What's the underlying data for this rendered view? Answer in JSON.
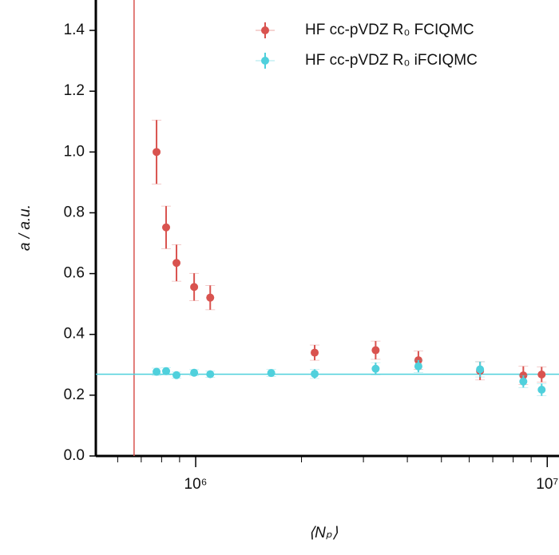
{
  "chart_data": {
    "type": "scatter",
    "xlabel": "⟨Nₚ⟩",
    "ylabel": "a / a.u.",
    "x": [
      774000,
      824000,
      882000,
      990000,
      1100000,
      1640000,
      2180000,
      3250000,
      4300000,
      6440000,
      8550000,
      9640000
    ],
    "series": [
      {
        "name": "HF cc-pVDZ R₀ FCIQMC",
        "color": "#d9534f",
        "values": [
          1.0,
          0.752,
          0.635,
          0.556,
          0.521,
          null,
          0.34,
          0.348,
          0.315,
          0.28,
          0.265,
          0.268
        ],
        "errors": [
          0.105,
          0.07,
          0.06,
          0.045,
          0.04,
          null,
          0.025,
          0.03,
          0.03,
          0.03,
          0.03,
          0.025
        ]
      },
      {
        "name": "HF cc-pVDZ R₀ iFCIQMC",
        "color": "#4fd0dc",
        "values": [
          0.277,
          0.279,
          0.266,
          0.274,
          0.269,
          0.273,
          0.27,
          0.287,
          0.295,
          0.285,
          0.245,
          0.218
        ],
        "errors": [
          0.012,
          0.012,
          0.01,
          0.01,
          0.01,
          0.012,
          0.015,
          0.02,
          0.02,
          0.025,
          0.02,
          0.02
        ]
      }
    ],
    "vline": {
      "value": 668000,
      "color": "#d9534f"
    },
    "hline": {
      "value": 0.269,
      "color": "#4fd0dc"
    },
    "xscale": "log",
    "xlim": [
      520000,
      10800000
    ],
    "xticks": [
      {
        "value": 1000000,
        "label": "10⁶"
      },
      {
        "value": 10000000,
        "label": "10⁷"
      }
    ],
    "xminorticks": [
      600000,
      700000,
      800000,
      900000,
      2000000,
      3000000,
      4000000,
      5000000,
      6000000,
      7000000,
      8000000,
      9000000
    ],
    "ylim": [
      0,
      1.5
    ],
    "yticks": [
      {
        "value": 0,
        "label": "0.0"
      },
      {
        "value": 0.2,
        "label": "0.2"
      },
      {
        "value": 0.4,
        "label": "0.4"
      },
      {
        "value": 0.6,
        "label": "0.6"
      },
      {
        "value": 0.8,
        "label": "0.8"
      },
      {
        "value": 1,
        "label": "1.0"
      },
      {
        "value": 1.2,
        "label": "1.2"
      },
      {
        "value": 1.4,
        "label": "1.4"
      }
    ],
    "legend": "upper right"
  }
}
